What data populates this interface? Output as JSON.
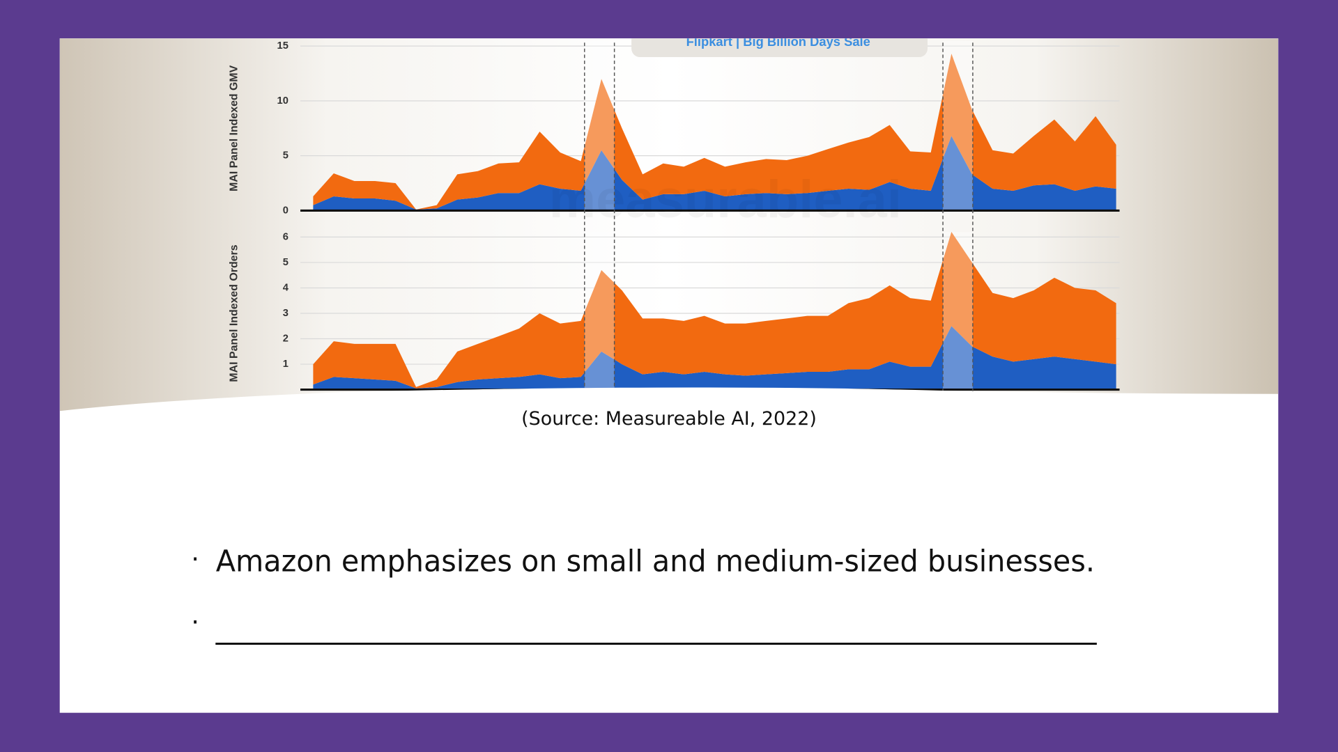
{
  "chart_data": [
    {
      "type": "area",
      "stacked": true,
      "grid": true,
      "ylabel": "MAI Panel Indexed GMV",
      "annotation": "Flipkart | Big Billion Days Sale",
      "watermark": "measurable.ai",
      "categories": [
        null,
        null,
        null,
        null,
        null,
        null,
        null,
        null,
        null,
        null,
        null,
        null,
        null,
        null,
        null,
        null,
        null,
        null,
        null,
        null,
        null,
        null,
        null,
        null,
        null,
        null,
        null,
        null,
        null,
        null,
        null,
        null,
        null,
        null,
        null,
        null,
        null,
        null,
        null,
        null
      ],
      "ylim": [
        0,
        15
      ],
      "yticks": [
        0,
        5,
        10,
        15
      ],
      "series": [
        {
          "color": "#1f5ec2",
          "values": [
            0.5,
            1.3,
            1.1,
            1.1,
            0.9,
            0.1,
            0.2,
            1.0,
            1.2,
            1.6,
            1.6,
            2.4,
            2.0,
            1.8,
            5.5,
            2.8,
            1.0,
            1.5,
            1.5,
            1.8,
            1.3,
            1.5,
            1.6,
            1.5,
            1.6,
            1.8,
            2.0,
            1.9,
            2.6,
            2.0,
            1.8,
            6.8,
            3.3,
            2.0,
            1.8,
            2.3,
            2.4,
            1.8,
            2.2,
            2.0
          ]
        },
        {
          "color": "#f26a10",
          "values": [
            0.8,
            2.1,
            1.6,
            1.6,
            1.6,
            0,
            0.3,
            2.3,
            2.4,
            2.7,
            2.8,
            4.8,
            3.3,
            2.7,
            6.5,
            4.7,
            2.3,
            2.8,
            2.5,
            3.0,
            2.7,
            2.9,
            3.1,
            3.1,
            3.4,
            3.8,
            4.2,
            4.8,
            5.2,
            3.4,
            3.5,
            7.5,
            5.9,
            3.5,
            3.4,
            4.5,
            5.9,
            4.5,
            6.4,
            4.0
          ]
        }
      ]
    },
    {
      "type": "area",
      "stacked": true,
      "grid": true,
      "ylabel": "MAI Panel Indexed Orders",
      "categories": [
        null,
        null,
        null,
        null,
        null,
        null,
        null,
        null,
        null,
        null,
        null,
        null,
        null,
        null,
        null,
        null,
        null,
        null,
        null,
        null,
        null,
        null,
        null,
        null,
        null,
        null,
        null,
        null,
        null,
        null,
        null,
        null,
        null,
        null,
        null,
        null,
        null,
        null,
        null,
        null
      ],
      "ylim": [
        0,
        6
      ],
      "yticks": [
        1,
        2,
        3,
        4,
        5,
        6
      ],
      "series": [
        {
          "color": "#1f5ec2",
          "values": [
            0.2,
            0.5,
            0.45,
            0.4,
            0.35,
            0.05,
            0.1,
            0.3,
            0.4,
            0.45,
            0.5,
            0.6,
            0.45,
            0.5,
            1.5,
            1.0,
            0.6,
            0.7,
            0.6,
            0.7,
            0.6,
            0.55,
            0.6,
            0.65,
            0.7,
            0.7,
            0.8,
            0.8,
            1.1,
            0.9,
            0.9,
            2.5,
            1.7,
            1.3,
            1.1,
            1.2,
            1.3,
            1.2,
            1.1,
            1.0
          ]
        },
        {
          "color": "#f26a10",
          "values": [
            0.8,
            1.4,
            1.35,
            1.4,
            1.45,
            0.05,
            0.3,
            1.2,
            1.4,
            1.65,
            1.9,
            2.4,
            2.15,
            2.2,
            3.2,
            2.9,
            2.2,
            2.1,
            2.1,
            2.2,
            2.0,
            2.05,
            2.1,
            2.15,
            2.2,
            2.2,
            2.6,
            2.8,
            3.0,
            2.7,
            2.6,
            3.7,
            3.3,
            2.5,
            2.5,
            2.7,
            3.1,
            2.8,
            2.8,
            2.4
          ]
        }
      ]
    }
  ],
  "caption": "(Source: Measureable AI, 2022)",
  "bullets": [
    "Amazon emphasizes on small and medium-sized businesses.",
    "___________________________________________________"
  ]
}
